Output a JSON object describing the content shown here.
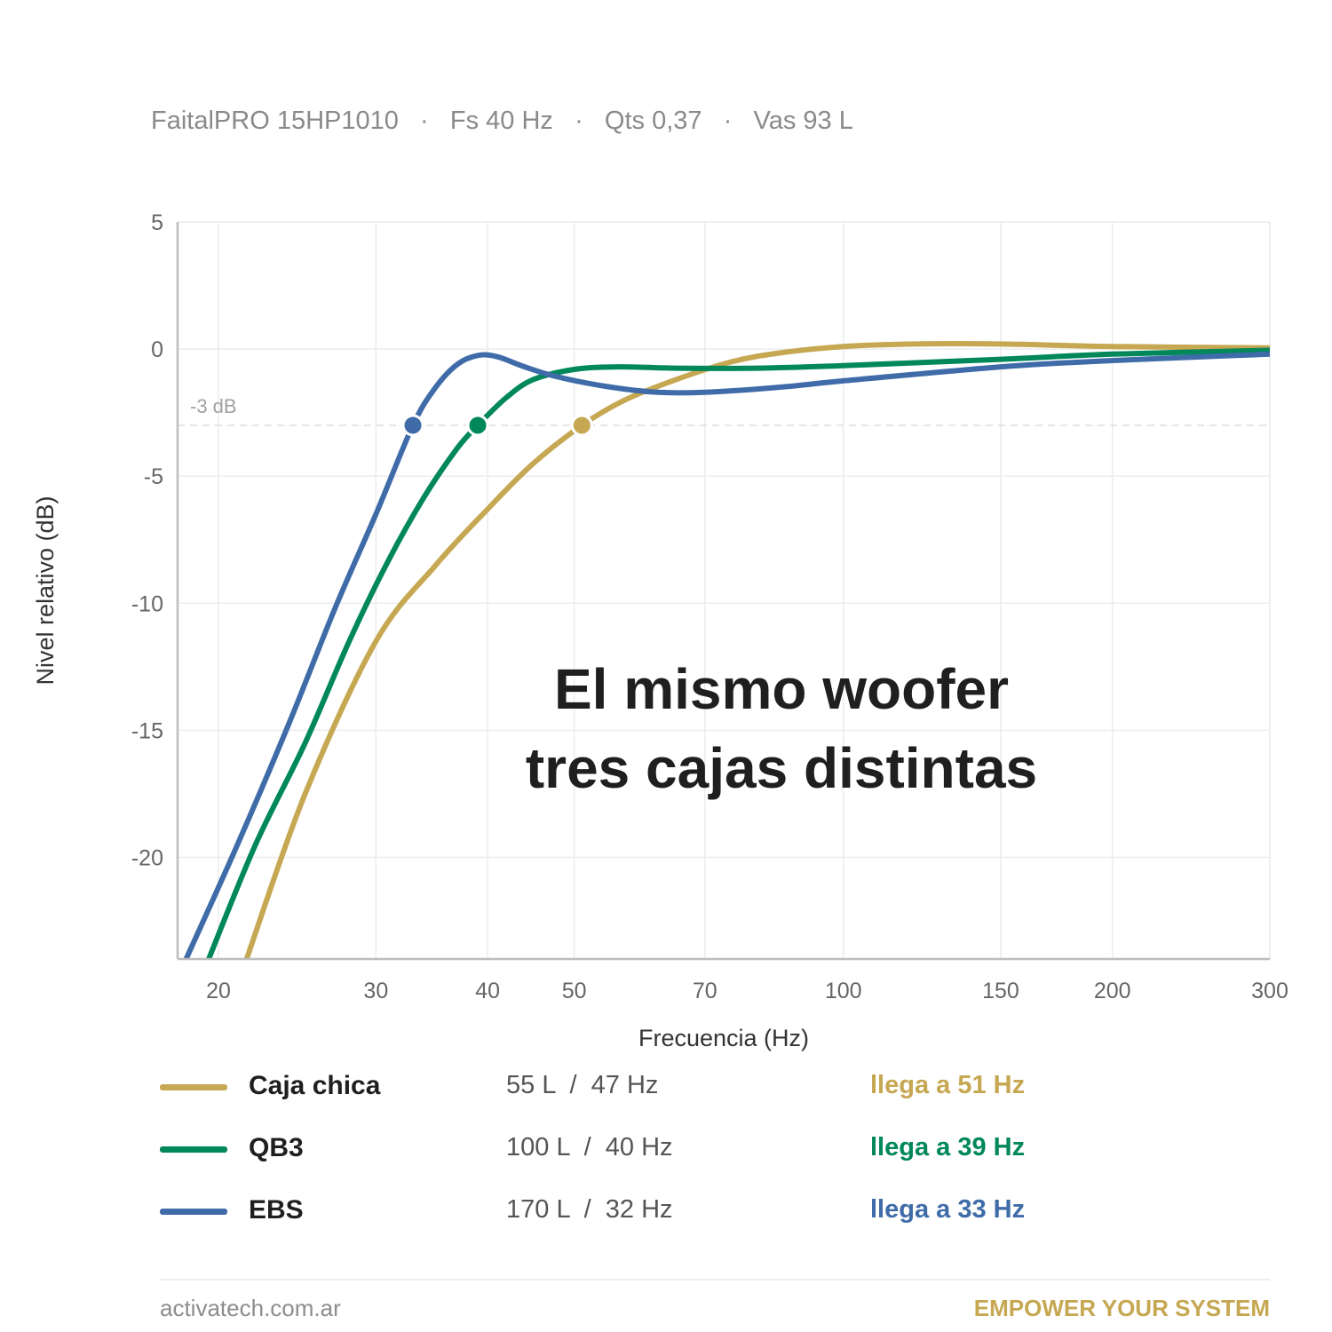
{
  "header": {
    "subtitle": "FaitalPRO 15HP1010   ·   Fs 40 Hz   ·   Qts 0,37   ·   Vas 93 L"
  },
  "overlay": {
    "line1": "El mismo woofer",
    "line2": "tres cajas distintas"
  },
  "chart_data": {
    "type": "line",
    "xscale": "log",
    "xlim": [
      18,
      300
    ],
    "ylim": [
      -24,
      5
    ],
    "xticks": [
      20,
      30,
      40,
      50,
      70,
      100,
      150,
      200,
      300
    ],
    "yticks": [
      5,
      0,
      -5,
      -10,
      -15,
      -20
    ],
    "xlabel": "Frecuencia (Hz)",
    "ylabel": "Nivel relativo (dB)",
    "grid": true,
    "reference_line": {
      "y": -3,
      "label": "-3 dB"
    },
    "series": [
      {
        "name": "Caja chica",
        "color": "#c6a752",
        "marker": {
          "x": 51,
          "y": -3
        },
        "points": [
          [
            21.5,
            -24
          ],
          [
            25,
            -17.5
          ],
          [
            30,
            -11.5
          ],
          [
            35,
            -8.5
          ],
          [
            40,
            -6.3
          ],
          [
            45,
            -4.5
          ],
          [
            51,
            -3
          ],
          [
            57,
            -2
          ],
          [
            65,
            -1.2
          ],
          [
            75,
            -0.5
          ],
          [
            85,
            -0.15
          ],
          [
            100,
            0.1
          ],
          [
            120,
            0.2
          ],
          [
            150,
            0.2
          ],
          [
            200,
            0.1
          ],
          [
            300,
            0.05
          ]
        ]
      },
      {
        "name": "QB3",
        "color": "#00875a",
        "marker": {
          "x": 39,
          "y": -3
        },
        "points": [
          [
            19.5,
            -24
          ],
          [
            22,
            -19.5
          ],
          [
            25,
            -15.5
          ],
          [
            28,
            -11.5
          ],
          [
            31,
            -8.3
          ],
          [
            34,
            -5.8
          ],
          [
            37,
            -3.9
          ],
          [
            39,
            -3
          ],
          [
            42,
            -1.9
          ],
          [
            45,
            -1.2
          ],
          [
            50,
            -0.8
          ],
          [
            56,
            -0.7
          ],
          [
            65,
            -0.75
          ],
          [
            80,
            -0.75
          ],
          [
            100,
            -0.65
          ],
          [
            150,
            -0.4
          ],
          [
            200,
            -0.2
          ],
          [
            300,
            -0.05
          ]
        ]
      },
      {
        "name": "EBS",
        "color": "#3f6ca8",
        "marker": {
          "x": 33,
          "y": -3
        },
        "points": [
          [
            18.4,
            -24
          ],
          [
            21,
            -19.5
          ],
          [
            24,
            -14.7
          ],
          [
            27,
            -10.2
          ],
          [
            30,
            -6.5
          ],
          [
            33,
            -3
          ],
          [
            35,
            -1.5
          ],
          [
            37,
            -0.6
          ],
          [
            39,
            -0.25
          ],
          [
            41,
            -0.3
          ],
          [
            44,
            -0.7
          ],
          [
            48,
            -1.1
          ],
          [
            55,
            -1.5
          ],
          [
            62,
            -1.7
          ],
          [
            70,
            -1.7
          ],
          [
            85,
            -1.5
          ],
          [
            100,
            -1.25
          ],
          [
            150,
            -0.7
          ],
          [
            200,
            -0.45
          ],
          [
            300,
            -0.2
          ]
        ]
      }
    ]
  },
  "legend": [
    {
      "name": "Caja chica",
      "spec": "55 L  /  47 Hz",
      "reach": "llega a 51 Hz",
      "color": "#c6a752"
    },
    {
      "name": "QB3",
      "spec": "100 L  /  40 Hz",
      "reach": "llega a 39 Hz",
      "color": "#00875a"
    },
    {
      "name": "EBS",
      "spec": "170 L  /  32 Hz",
      "reach": "llega a 33 Hz",
      "color": "#3f6ca8"
    }
  ],
  "footer": {
    "site": "activatech.com.ar",
    "tagline": "EMPOWER YOUR SYSTEM"
  }
}
